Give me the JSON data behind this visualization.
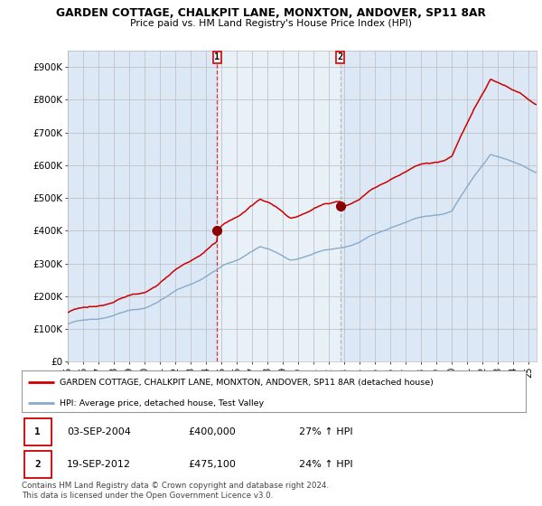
{
  "title": "GARDEN COTTAGE, CHALKPIT LANE, MONXTON, ANDOVER, SP11 8AR",
  "subtitle": "Price paid vs. HM Land Registry's House Price Index (HPI)",
  "ylabel_ticks": [
    "£0",
    "£100K",
    "£200K",
    "£300K",
    "£400K",
    "£500K",
    "£600K",
    "£700K",
    "£800K",
    "£900K"
  ],
  "ytick_values": [
    0,
    100000,
    200000,
    300000,
    400000,
    500000,
    600000,
    700000,
    800000,
    900000
  ],
  "ylim": [
    0,
    950000
  ],
  "xlim_start": 1995.0,
  "xlim_end": 2025.5,
  "purchase1_x": 2004.71,
  "purchase1_price": 400000,
  "purchase1_date": "03-SEP-2004",
  "purchase1_hpi_text": "27% ↑ HPI",
  "purchase2_x": 2012.72,
  "purchase2_price": 475100,
  "purchase2_date": "19-SEP-2012",
  "purchase2_hpi_text": "24% ↑ HPI",
  "legend_property": "GARDEN COTTAGE, CHALKPIT LANE, MONXTON, ANDOVER, SP11 8AR (detached house)",
  "legend_hpi": "HPI: Average price, detached house, Test Valley",
  "footer": "Contains HM Land Registry data © Crown copyright and database right 2024.\nThis data is licensed under the Open Government Licence v3.0.",
  "property_line_color": "#cc0000",
  "hpi_line_color": "#88aacc",
  "background_color": "#dce8f5",
  "plot_bg_color": "#ffffff",
  "grid_color": "#bbbbbb",
  "shade_color": "#dce8f5",
  "vline1_color": "#dd0000",
  "vline2_color": "#aaaaaa",
  "marker_color": "#880000",
  "x_tick_labels": [
    "95",
    "96",
    "97",
    "98",
    "99",
    "00",
    "01",
    "02",
    "03",
    "04",
    "05",
    "06",
    "07",
    "08",
    "09",
    "10",
    "11",
    "12",
    "13",
    "14",
    "15",
    "16",
    "17",
    "18",
    "19",
    "20",
    "21",
    "22",
    "23",
    "24",
    "25"
  ],
  "x_tick_years": [
    1995,
    1996,
    1997,
    1998,
    1999,
    2000,
    2001,
    2002,
    2003,
    2004,
    2005,
    2006,
    2007,
    2008,
    2009,
    2010,
    2011,
    2012,
    2013,
    2014,
    2015,
    2016,
    2017,
    2018,
    2019,
    2020,
    2021,
    2022,
    2023,
    2024,
    2025
  ]
}
